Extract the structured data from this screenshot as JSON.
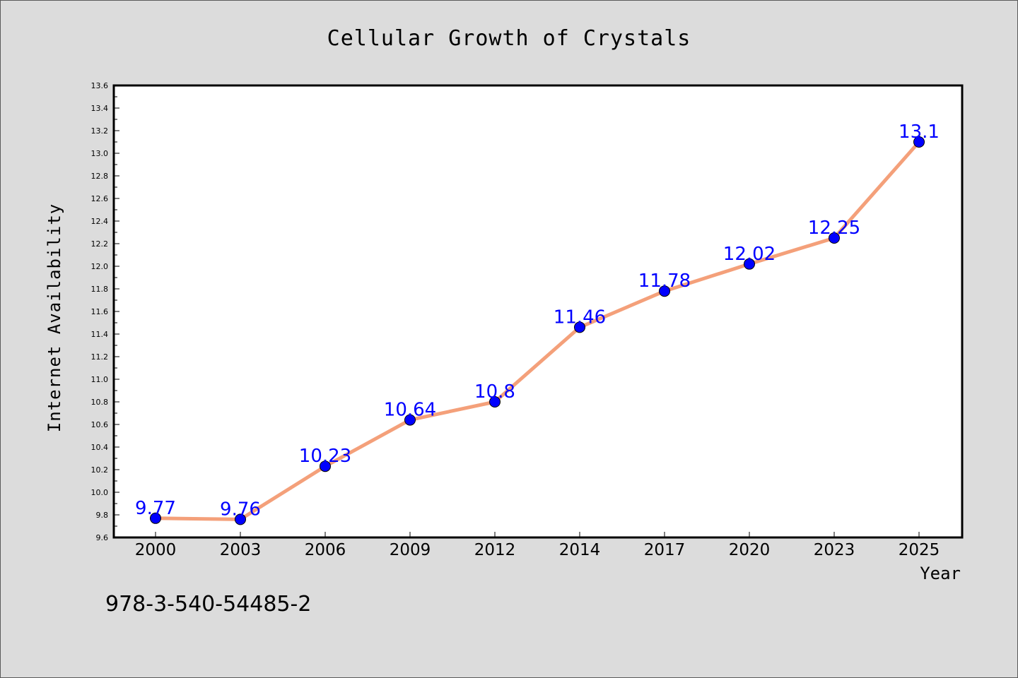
{
  "chart_data": {
    "type": "line",
    "title": "Cellular Growth of Crystals",
    "xlabel": "Year",
    "ylabel": "Internet Availability",
    "categories": [
      "2000",
      "2003",
      "2006",
      "2009",
      "2012",
      "2014",
      "2017",
      "2020",
      "2023",
      "2025"
    ],
    "series": [
      {
        "values": [
          9.77,
          9.76,
          10.23,
          10.64,
          10.8,
          11.46,
          11.78,
          12.02,
          12.25,
          13.1
        ],
        "labels": [
          "9.77",
          "9.76",
          "10.23",
          "10.64",
          "10.8",
          "11.46",
          "11.78",
          "12.02",
          "12.25",
          "13.1"
        ],
        "line_color": "#f4a07a",
        "marker_color": "#0000ff",
        "label_color": "#0000ff"
      }
    ],
    "ylim": [
      9.6,
      13.6
    ],
    "y_ticks": [
      "9.6",
      "9.8",
      "10.0",
      "10.2",
      "10.4",
      "10.6",
      "10.8",
      "11.0",
      "11.2",
      "11.4",
      "11.6",
      "11.8",
      "12.0",
      "12.2",
      "12.4",
      "12.6",
      "12.8",
      "13.0",
      "13.2",
      "13.4",
      "13.6"
    ],
    "grid": false,
    "legend": "none"
  },
  "annotation": {
    "text": "978-3-540-54485-2"
  },
  "colors": {
    "background": "#dcdcdc",
    "plot_area": "#ffffff",
    "axes": "#000000"
  }
}
